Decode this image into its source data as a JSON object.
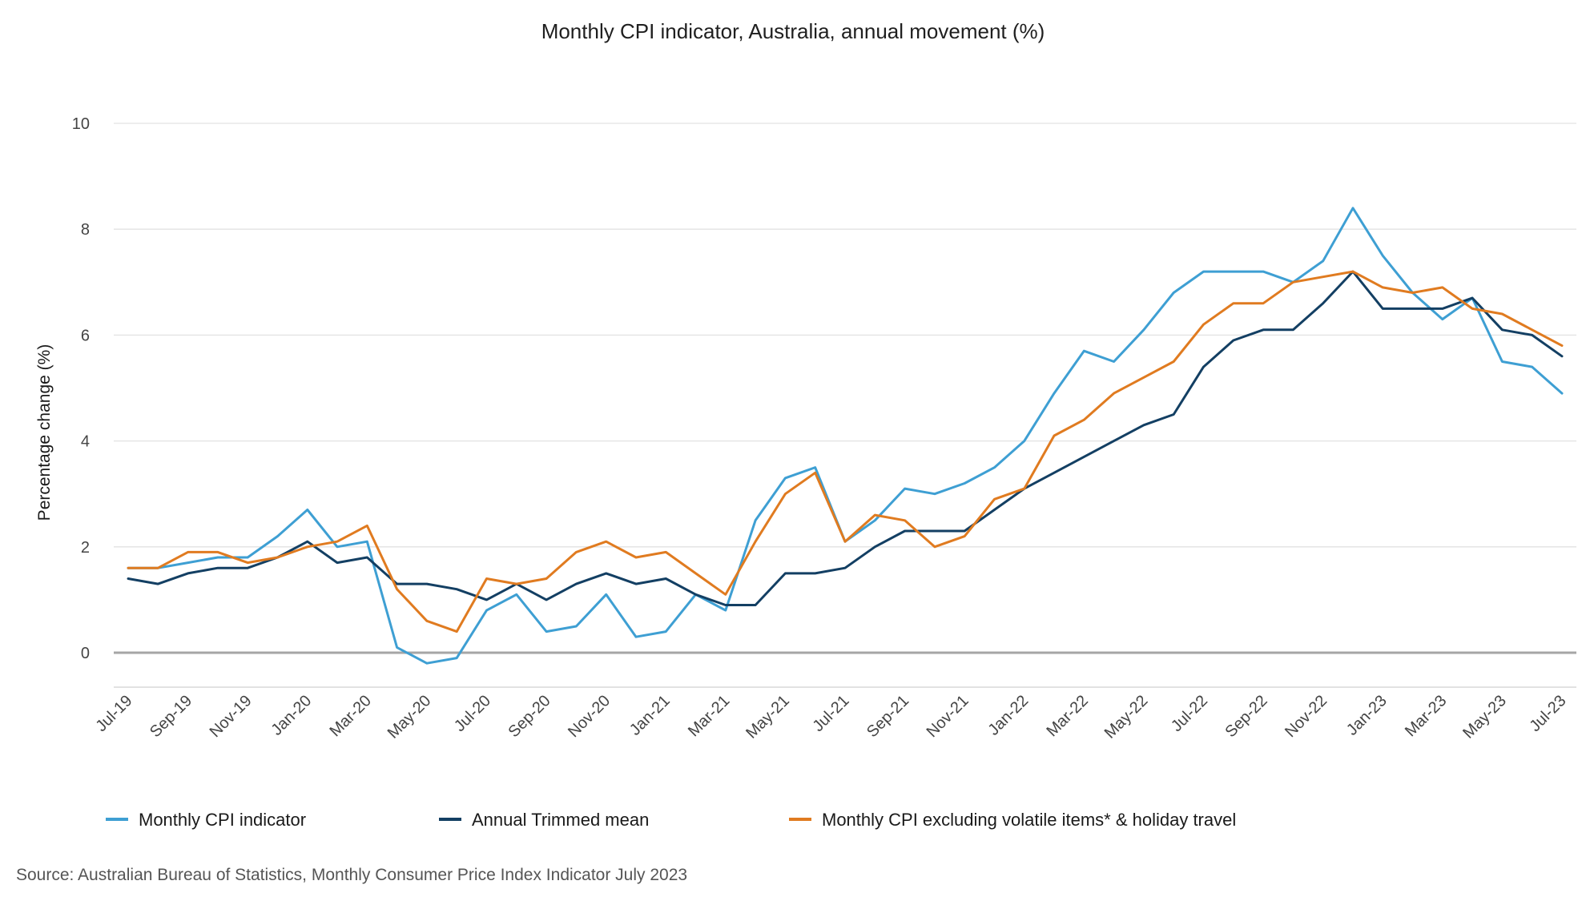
{
  "chart_data": {
    "type": "line",
    "title": "Monthly CPI indicator, Australia, annual movement (%)",
    "xlabel": "",
    "ylabel": "Percentage change (%)",
    "ylim": [
      -0.65,
      10
    ],
    "yticks": [
      0,
      2,
      4,
      6,
      8,
      10
    ],
    "ytick_labels": [
      "0",
      "2",
      "4",
      "6",
      "8",
      "10"
    ],
    "x_tick_labels": [
      "Jul-19",
      "Sep-19",
      "Nov-19",
      "Jan-20",
      "Mar-20",
      "May-20",
      "Jul-20",
      "Sep-20",
      "Nov-20",
      "Jan-21",
      "Mar-21",
      "May-21",
      "Jul-21",
      "Sep-21",
      "Nov-21",
      "Jan-22",
      "Mar-22",
      "May-22",
      "Jul-22",
      "Sep-22",
      "Nov-22",
      "Jan-23",
      "Mar-23",
      "May-23",
      "Jul-23"
    ],
    "categories": [
      "Jul-19",
      "Aug-19",
      "Sep-19",
      "Oct-19",
      "Nov-19",
      "Dec-19",
      "Jan-20",
      "Feb-20",
      "Mar-20",
      "Apr-20",
      "May-20",
      "Jun-20",
      "Jul-20",
      "Aug-20",
      "Sep-20",
      "Oct-20",
      "Nov-20",
      "Dec-20",
      "Jan-21",
      "Feb-21",
      "Mar-21",
      "Apr-21",
      "May-21",
      "Jun-21",
      "Jul-21",
      "Aug-21",
      "Sep-21",
      "Oct-21",
      "Nov-21",
      "Dec-21",
      "Jan-22",
      "Feb-22",
      "Mar-22",
      "Apr-22",
      "May-22",
      "Jun-22",
      "Jul-22",
      "Aug-22",
      "Sep-22",
      "Oct-22",
      "Nov-22",
      "Dec-22",
      "Jan-23",
      "Feb-23",
      "Mar-23",
      "Apr-23",
      "May-23",
      "Jun-23",
      "Jul-23"
    ],
    "grid": true,
    "legend_position": "bottom",
    "series": [
      {
        "name": "Monthly CPI indicator",
        "color": "#3e9fd3",
        "values": [
          1.6,
          1.6,
          1.7,
          1.8,
          1.8,
          2.2,
          2.7,
          2.0,
          2.1,
          0.1,
          -0.2,
          -0.1,
          0.8,
          1.1,
          0.4,
          0.5,
          1.1,
          0.3,
          0.4,
          1.1,
          0.8,
          2.5,
          3.3,
          3.5,
          2.1,
          2.5,
          3.1,
          3.0,
          3.2,
          3.5,
          4.0,
          4.9,
          5.7,
          5.5,
          6.1,
          6.8,
          7.2,
          7.2,
          7.2,
          7.0,
          7.4,
          8.4,
          7.5,
          6.8,
          6.3,
          6.7,
          5.5,
          5.4,
          4.9
        ]
      },
      {
        "name": "Annual Trimmed mean",
        "color": "#133f63",
        "values": [
          1.4,
          1.3,
          1.5,
          1.6,
          1.6,
          1.8,
          2.1,
          1.7,
          1.8,
          1.3,
          1.3,
          1.2,
          1.0,
          1.3,
          1.0,
          1.3,
          1.5,
          1.3,
          1.4,
          1.1,
          0.9,
          0.9,
          1.5,
          1.5,
          1.6,
          2.0,
          2.3,
          2.3,
          2.3,
          2.7,
          3.1,
          3.4,
          3.7,
          4.0,
          4.3,
          4.5,
          5.4,
          5.9,
          6.1,
          6.1,
          6.6,
          7.2,
          6.5,
          6.5,
          6.5,
          6.7,
          6.1,
          6.0,
          5.6
        ]
      },
      {
        "name": "Monthly CPI excluding volatile items* & holiday travel",
        "color": "#e07b20",
        "values": [
          1.6,
          1.6,
          1.9,
          1.9,
          1.7,
          1.8,
          2.0,
          2.1,
          2.4,
          1.2,
          0.6,
          0.4,
          1.4,
          1.3,
          1.4,
          1.9,
          2.1,
          1.8,
          1.9,
          1.5,
          1.1,
          2.1,
          3.0,
          3.4,
          2.1,
          2.6,
          2.5,
          2.0,
          2.2,
          2.9,
          3.1,
          4.1,
          4.4,
          4.9,
          5.2,
          5.5,
          6.2,
          6.6,
          6.6,
          7.0,
          7.1,
          7.2,
          6.9,
          6.8,
          6.9,
          6.5,
          6.4,
          6.1,
          5.8
        ]
      }
    ]
  },
  "source": "Source: Australian Bureau of Statistics, Monthly Consumer Price Index Indicator July 2023"
}
